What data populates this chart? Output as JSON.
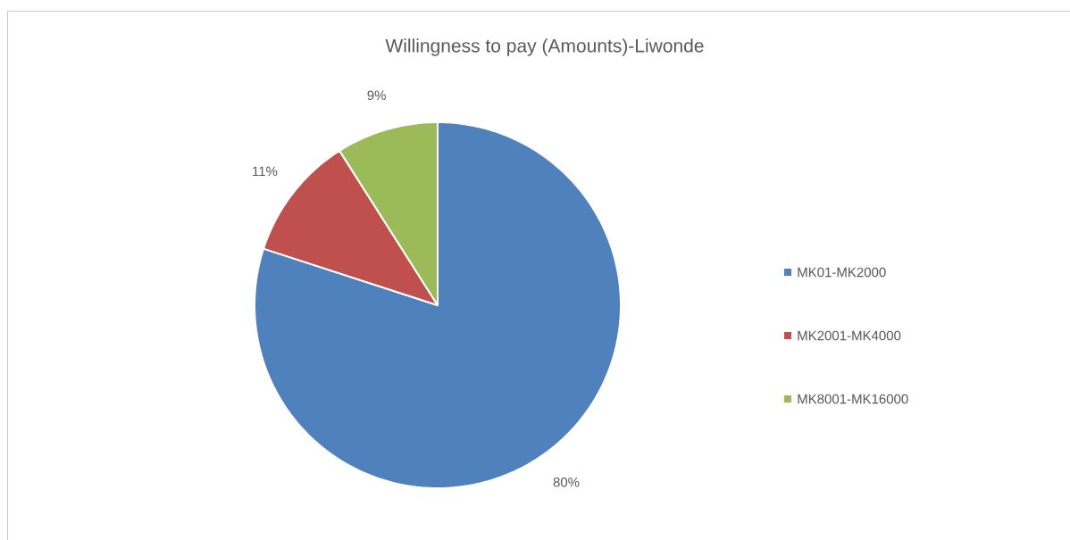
{
  "chart_data": {
    "type": "pie",
    "title": "Willingness to pay (Amounts)-Liwonde",
    "categories": [
      "MK01-MK2000",
      "MK2001-MK4000",
      "MK8001-MK16000"
    ],
    "values": [
      80,
      11,
      9
    ],
    "value_labels": [
      "80%",
      "11%",
      "9%"
    ],
    "colors": [
      "#4f81bd",
      "#c0504d",
      "#9bbb59"
    ],
    "legend": "right"
  }
}
